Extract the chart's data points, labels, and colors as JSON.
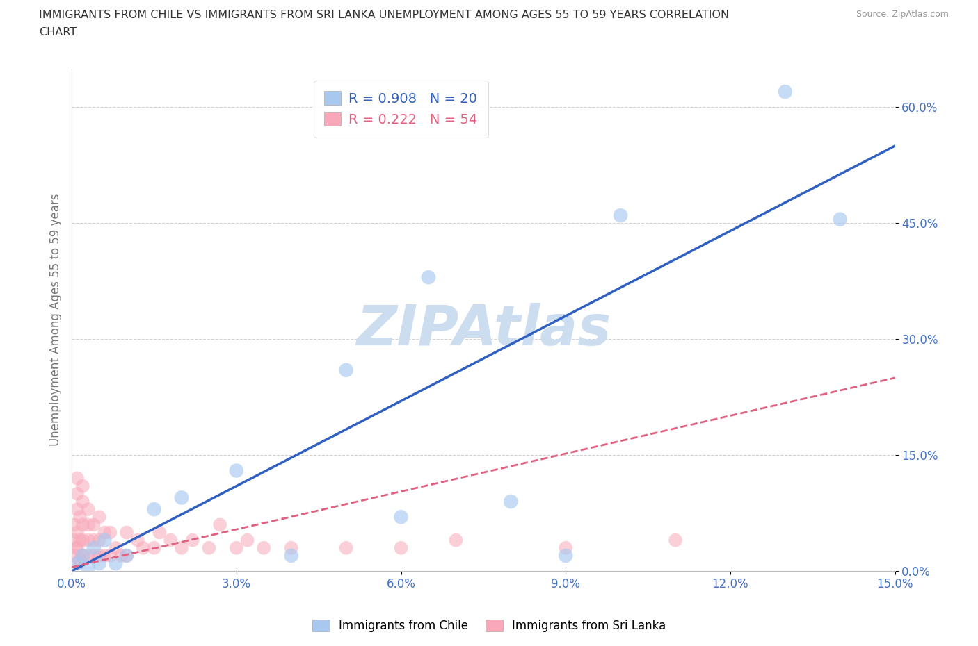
{
  "title_line1": "IMMIGRANTS FROM CHILE VS IMMIGRANTS FROM SRI LANKA UNEMPLOYMENT AMONG AGES 55 TO 59 YEARS CORRELATION",
  "title_line2": "CHART",
  "source": "Source: ZipAtlas.com",
  "ylabel": "Unemployment Among Ages 55 to 59 years",
  "xlim": [
    0.0,
    0.15
  ],
  "ylim": [
    0.0,
    0.65
  ],
  "xticks": [
    0.0,
    0.03,
    0.06,
    0.09,
    0.12,
    0.15
  ],
  "xticklabels": [
    "0.0%",
    "3.0%",
    "6.0%",
    "9.0%",
    "12.0%",
    "15.0%"
  ],
  "yticks": [
    0.0,
    0.15,
    0.3,
    0.45,
    0.6
  ],
  "yticklabels": [
    "0.0%",
    "15.0%",
    "30.0%",
    "45.0%",
    "60.0%"
  ],
  "chile_R": 0.908,
  "chile_N": 20,
  "srilanka_R": 0.222,
  "srilanka_N": 54,
  "chile_color": "#a8c8f0",
  "srilanka_color": "#f8a8b8",
  "chile_line_color": "#3060c0",
  "srilanka_line_color": "#e06080",
  "tick_label_color": "#4472c4",
  "background_color": "#ffffff",
  "watermark": "ZIPAtlas",
  "watermark_color": "#ccddf0",
  "grid_color": "#cccccc",
  "chile_x": [
    0.001,
    0.002,
    0.003,
    0.004,
    0.005,
    0.006,
    0.008,
    0.01,
    0.015,
    0.02,
    0.03,
    0.04,
    0.05,
    0.06,
    0.065,
    0.08,
    0.09,
    0.1,
    0.13,
    0.14
  ],
  "chile_y": [
    0.01,
    0.02,
    0.005,
    0.03,
    0.01,
    0.04,
    0.01,
    0.02,
    0.08,
    0.095,
    0.13,
    0.02,
    0.26,
    0.07,
    0.38,
    0.09,
    0.02,
    0.46,
    0.62,
    0.455
  ],
  "srilanka_x": [
    0.0005,
    0.0005,
    0.0005,
    0.0008,
    0.001,
    0.001,
    0.001,
    0.001,
    0.001,
    0.001,
    0.0015,
    0.0015,
    0.0015,
    0.002,
    0.002,
    0.002,
    0.002,
    0.002,
    0.003,
    0.003,
    0.003,
    0.003,
    0.004,
    0.004,
    0.004,
    0.005,
    0.005,
    0.005,
    0.006,
    0.006,
    0.007,
    0.007,
    0.008,
    0.009,
    0.01,
    0.01,
    0.012,
    0.013,
    0.015,
    0.016,
    0.018,
    0.02,
    0.022,
    0.025,
    0.027,
    0.03,
    0.032,
    0.035,
    0.04,
    0.05,
    0.06,
    0.07,
    0.09,
    0.11
  ],
  "srilanka_y": [
    0.02,
    0.04,
    0.06,
    0.03,
    0.01,
    0.03,
    0.05,
    0.08,
    0.1,
    0.12,
    0.015,
    0.04,
    0.07,
    0.02,
    0.04,
    0.06,
    0.09,
    0.11,
    0.02,
    0.04,
    0.06,
    0.08,
    0.02,
    0.04,
    0.06,
    0.02,
    0.04,
    0.07,
    0.02,
    0.05,
    0.02,
    0.05,
    0.03,
    0.02,
    0.02,
    0.05,
    0.04,
    0.03,
    0.03,
    0.05,
    0.04,
    0.03,
    0.04,
    0.03,
    0.06,
    0.03,
    0.04,
    0.03,
    0.03,
    0.03,
    0.03,
    0.04,
    0.03,
    0.04
  ],
  "chile_trend_x": [
    0.0,
    0.15
  ],
  "chile_trend_y": [
    0.0,
    0.55
  ],
  "srilanka_trend_x": [
    0.0,
    0.15
  ],
  "srilanka_trend_y": [
    0.005,
    0.25
  ]
}
